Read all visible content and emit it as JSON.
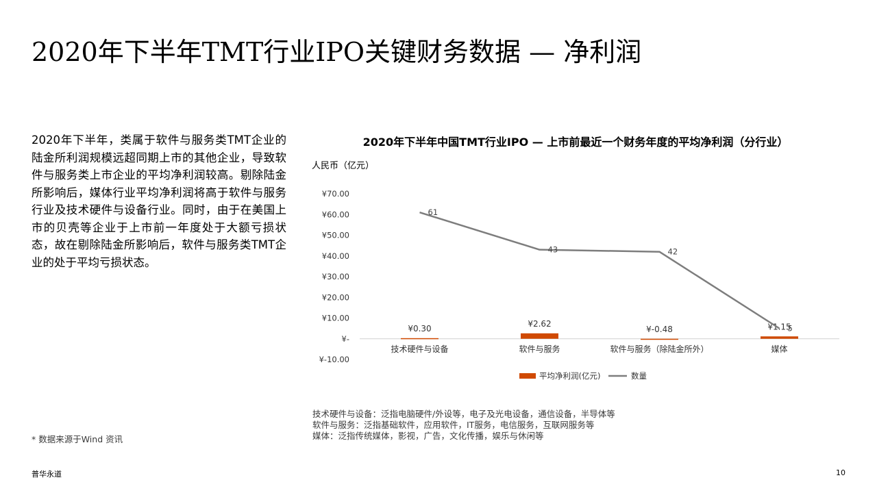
{
  "slide": {
    "title": "2020年下半年TMT行业IPO关键财务数据 — 净利润",
    "body": "2020年下半年，类属于软件与服务类TMT企业的陆金所利润规模远超同期上市的其他企业，导致软件与服务类上市企业的平均净利润较高。剔除陆金所影响后，媒体行业平均净利润将高于软件与服务行业及技术硬件与设备行业。同时，由于在美国上市的贝壳等企业于上市前一年度处于大额亏损状态，故在剔除陆金所影响后，软件与服务类TMT企业的处于平均亏损状态。",
    "source": "* 数据来源于Wind 资讯",
    "footer_brand": "普华永道",
    "page_number": "10"
  },
  "notes": [
    "技术硬件与设备：泛指电脑硬件/外设等，电子及光电设备，通信设备，半导体等",
    "软件与服务：泛指基础软件，应用软件，IT服务，电信服务，互联网服务等",
    "媒体：泛指传统媒体，影视，广告，文化传播，娱乐与休闲等"
  ],
  "chart_data": {
    "type": "bar",
    "title": "2020年下半年中国TMT行业IPO — 上市前最近一个财务年度的平均净利润（分行业）",
    "ylabel": "人民币（亿元）",
    "categories": [
      "技术硬件与设备",
      "软件与服务",
      "软件与服务（除陆金所外）",
      "媒体"
    ],
    "ylim": [
      -10,
      70
    ],
    "yticks": [
      70,
      60,
      50,
      40,
      30,
      20,
      10,
      0,
      -10
    ],
    "ytick_labels": [
      "¥70.00",
      "¥60.00",
      "¥50.00",
      "¥40.00",
      "¥30.00",
      "¥20.00",
      "¥10.00",
      "¥-",
      "¥-10.00"
    ],
    "series": [
      {
        "name": "平均净利润(亿元)",
        "type": "bar",
        "color": "#d04a02",
        "values": [
          0.3,
          2.62,
          -0.48,
          1.15
        ],
        "labels": [
          "¥0.30",
          "¥2.62",
          "¥-0.48",
          "¥1.15"
        ]
      },
      {
        "name": "数量",
        "type": "line",
        "color": "#7d7d7d",
        "values": [
          61,
          43,
          42,
          5
        ],
        "labels": [
          "61",
          "43",
          "42",
          "5"
        ]
      }
    ],
    "legend_position": "bottom",
    "grid": false
  }
}
